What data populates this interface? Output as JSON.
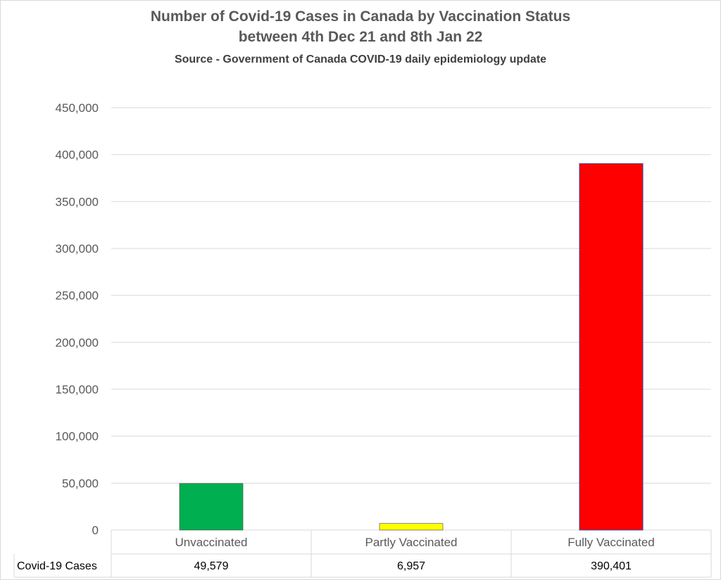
{
  "chart_data": {
    "type": "bar",
    "title": "Number of Covid-19 Cases in Canada by Vaccination Status",
    "subtitle": "between 4th Dec 21 and 8th Jan 22",
    "source": "Source - Government of Canada COVID-19 daily epidemiology update",
    "categories": [
      "Unvaccinated",
      "Partly Vaccinated",
      "Fully Vaccinated"
    ],
    "series": [
      {
        "name": "Covid-19 Cases",
        "values": [
          49579,
          6957,
          390401
        ],
        "labels": [
          "49,579",
          "6,957",
          "390,401"
        ],
        "colors": [
          "#00b050",
          "#ffff00",
          "#ff0000"
        ]
      }
    ],
    "yticks": [
      "0",
      "50,000",
      "100,000",
      "150,000",
      "200,000",
      "250,000",
      "300,000",
      "350,000",
      "400,000",
      "450,000"
    ],
    "ylim": [
      0,
      450000
    ],
    "grid": true,
    "data_table": true
  }
}
